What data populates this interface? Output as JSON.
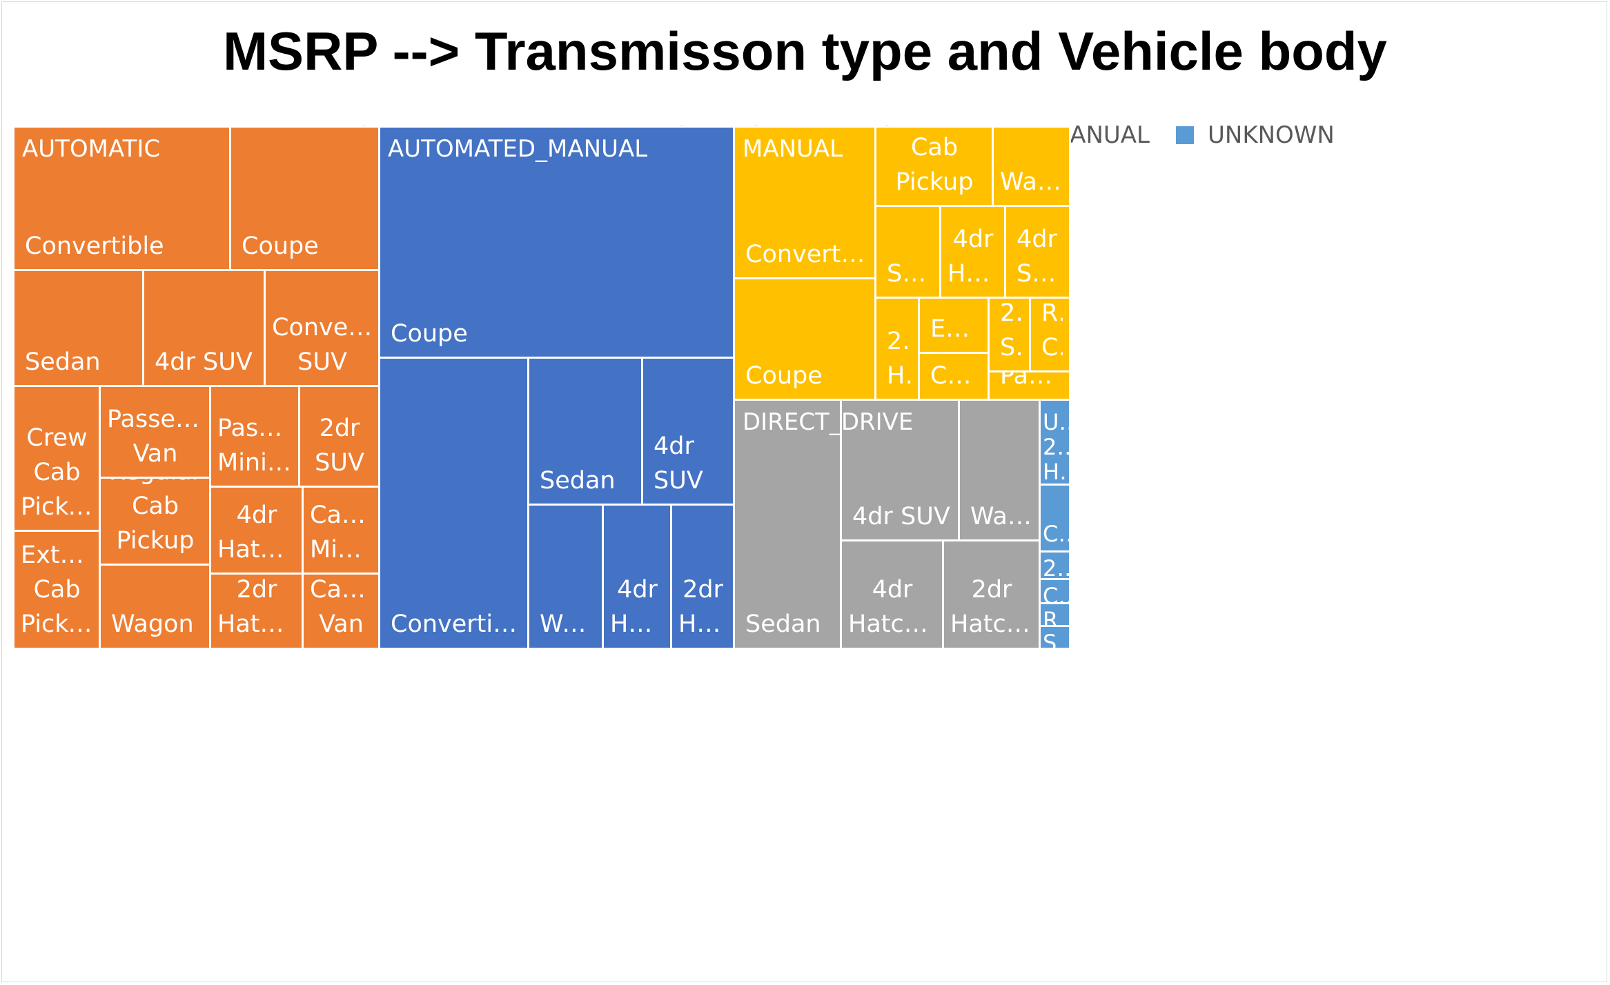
{
  "chart_data": {
    "type": "treemap",
    "title": "MSRP --> Transmisson type and Vehicle body",
    "legend": {
      "position": "top",
      "entries": [
        {
          "name": "AUTOMATED_MANUAL",
          "color": "#4472C4"
        },
        {
          "name": "AUTOMATIC",
          "color": "#ED7D31"
        },
        {
          "name": "DIRECT_DRIVE",
          "color": "#A5A5A5"
        },
        {
          "name": "MANUAL",
          "color": "#FFC000"
        },
        {
          "name": "UNKNOWN",
          "color": "#5B9BD5"
        }
      ]
    },
    "groups": [
      {
        "name": "AUTOMATIC",
        "label": "AUTOMATIC",
        "color": "#ED7D31",
        "children": [
          {
            "name": "Convertible",
            "label": "Convertible",
            "value": 109,
            "align": "left"
          },
          {
            "name": "Coupe",
            "label": "Coupe",
            "value": 70,
            "align": "left"
          },
          {
            "name": "Sedan",
            "label": "Sedan",
            "value": 51,
            "align": "left"
          },
          {
            "name": "4dr SUV",
            "label": "4dr SUV",
            "value": 48,
            "align": "left"
          },
          {
            "name": "Convertible SUV",
            "label": "Convertible SUV",
            "value": 45,
            "align": "center"
          },
          {
            "name": "Crew Cab Pickup",
            "label": "Crew Cab Pickup",
            "value": 41,
            "align": "center"
          },
          {
            "name": "Extended Cab Pickup",
            "label": "Extend… Cab Pickup",
            "value": 27,
            "align": "center"
          },
          {
            "name": "Passenger Van",
            "label": "Passenger Van",
            "value": 33,
            "align": "center"
          },
          {
            "name": "Regular Cab Pickup",
            "label": "Regular Cab Pickup",
            "value": 30,
            "align": "center"
          },
          {
            "name": "Wagon",
            "label": "Wagon",
            "value": 36,
            "align": "left"
          },
          {
            "name": "Passenger Minivan",
            "label": "Passen… Minivan",
            "value": 27,
            "align": "center"
          },
          {
            "name": "2dr SUV",
            "label": "2dr SUV",
            "value": 24,
            "align": "center"
          },
          {
            "name": "4dr Hatchback",
            "label": "4dr Hatchb…",
            "value": 22,
            "align": "center"
          },
          {
            "name": "Cargo Minivan",
            "label": "Cargo Miniv…",
            "value": 21,
            "align": "center"
          },
          {
            "name": "2dr Hatchback",
            "label": "2dr Hatchb…",
            "value": 25,
            "align": "center"
          },
          {
            "name": "Cargo Van",
            "label": "Cargo Van",
            "value": 24,
            "align": "center"
          }
        ]
      },
      {
        "name": "AUTOMATED_MANUAL",
        "label": "AUTOMATED_MANUAL",
        "color": "#4472C4",
        "children": [
          {
            "name": "Coupe",
            "label": "Coupe",
            "value": 256,
            "align": "left"
          },
          {
            "name": "Convertible",
            "label": "Convertible",
            "value": 121,
            "align": "left"
          },
          {
            "name": "Sedan",
            "label": "Sedan",
            "value": 56,
            "align": "left"
          },
          {
            "name": "4dr SUV",
            "label": "4dr SUV",
            "value": 45,
            "align": "left"
          },
          {
            "name": "Wagon",
            "label": "Wagon",
            "value": 24,
            "align": "left"
          },
          {
            "name": "4dr Hatchback",
            "label": "4dr Hatc…",
            "value": 22,
            "align": "center"
          },
          {
            "name": "2dr Hatchback",
            "label": "2dr Hatc…",
            "value": 21,
            "align": "center"
          }
        ]
      },
      {
        "name": "MANUAL",
        "label": "MANUAL",
        "color": "#FFC000",
        "children": [
          {
            "name": "Convertible",
            "label": "Convertible",
            "value": 71,
            "align": "left"
          },
          {
            "name": "Coupe",
            "label": "Coupe",
            "value": 56,
            "align": "left"
          },
          {
            "name": "Crew Cab Pickup",
            "label": "Crew Cab Pickup",
            "value": 28,
            "align": "center"
          },
          {
            "name": "Wagon",
            "label": "Wagon",
            "value": 17,
            "align": "center"
          },
          {
            "name": "Sedan",
            "label": "Sedan",
            "value": 18,
            "align": "left"
          },
          {
            "name": "4dr Hatchback",
            "label": "4dr Hatc…",
            "value": 18,
            "align": "center"
          },
          {
            "name": "4dr SUV",
            "label": "4dr SUV",
            "value": 17,
            "align": "left"
          },
          {
            "name": "2dr Hatchback",
            "label": "2dr H…",
            "value": 13,
            "align": "left"
          },
          {
            "name": "Extended Cab Pickup",
            "label": "Exte…",
            "value": 8,
            "align": "left"
          },
          {
            "name": "Convertible SUV",
            "label": "Conv…",
            "value": 7,
            "align": "left"
          },
          {
            "name": "2dr SUV",
            "label": "2… S…",
            "value": 6,
            "align": "left"
          },
          {
            "name": "Regular Cab Pickup",
            "label": "R… C…",
            "value": 6,
            "align": "left"
          },
          {
            "name": "Passenger Minivan",
            "label": "Passe…",
            "value": 5,
            "align": "left"
          }
        ]
      },
      {
        "name": "DIRECT_DRIVE",
        "label": "DIRECT_DRIVE",
        "color": "#A5A5A5",
        "children": [
          {
            "name": "Sedan",
            "label": "Sedan",
            "value": 111,
            "align": "left"
          },
          {
            "name": "4dr SUV",
            "label": "4dr SUV",
            "value": 51,
            "align": "left"
          },
          {
            "name": "Wagon",
            "label": "Wagon",
            "value": 34,
            "align": "left"
          },
          {
            "name": "4dr Hatchback",
            "label": "4dr Hatchback",
            "value": 41,
            "align": "center"
          },
          {
            "name": "2dr Hatchback",
            "label": "2dr Hatchback",
            "value": 37,
            "align": "center"
          }
        ]
      },
      {
        "name": "UNKNOWN",
        "label": "U… 2… H…",
        "color": "#5B9BD5",
        "children": [
          {
            "name": "2dr Hatchback",
            "label": "U… 2… H…",
            "value": 11,
            "align": "left"
          },
          {
            "name": "Convertible",
            "label": "C…",
            "value": 10,
            "align": "left"
          },
          {
            "name": "2dr SUV",
            "label": "2…",
            "value": 3,
            "align": "left"
          },
          {
            "name": "Coupe",
            "label": "C…",
            "value": 3,
            "align": "left"
          },
          {
            "name": "Regular Cab Pickup",
            "label": "R…",
            "value": 3,
            "align": "left"
          },
          {
            "name": "Sedan",
            "label": "S…",
            "value": 3,
            "align": "left"
          }
        ]
      }
    ]
  }
}
